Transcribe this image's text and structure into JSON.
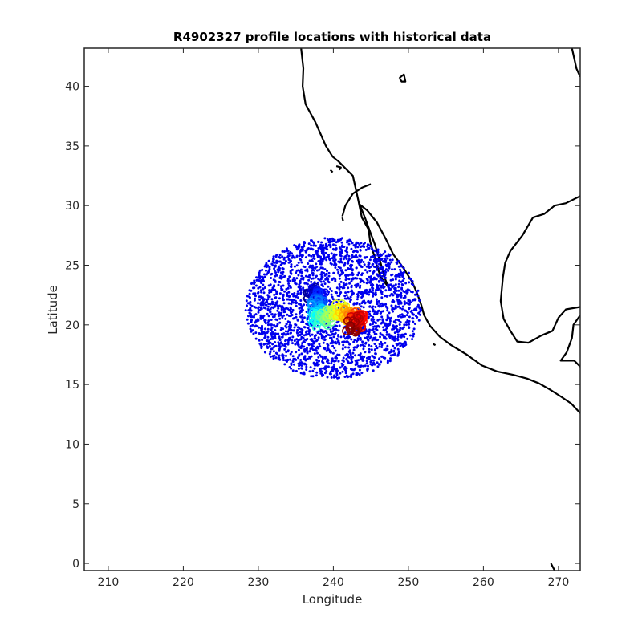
{
  "chart_data": {
    "type": "scatter",
    "title": "R4902327 profile locations with historical data",
    "xlabel": "Longitude",
    "ylabel": "Latitude",
    "xlim": [
      206.8,
      272.9
    ],
    "ylim": [
      -0.6,
      43.2
    ],
    "xticks": [
      210,
      220,
      230,
      240,
      250,
      260,
      270
    ],
    "yticks": [
      0,
      5,
      10,
      15,
      20,
      25,
      30,
      35,
      40
    ],
    "grid": false,
    "legend": "none",
    "historical_points": {
      "color": "#0000ee",
      "region": {
        "lon_center": 240.0,
        "lat_center": 21.4,
        "lon_radius": 11.7,
        "lat_radius": 5.9
      }
    },
    "float_profiles": {
      "colormap": "jet",
      "path": [
        {
          "lon": 237.0,
          "lat": 22.7
        },
        {
          "lon": 238.5,
          "lat": 22.3
        },
        {
          "lon": 237.5,
          "lat": 21.2
        },
        {
          "lon": 238.3,
          "lat": 20.3
        },
        {
          "lon": 240.5,
          "lat": 21.3
        },
        {
          "lon": 242.0,
          "lat": 20.8
        },
        {
          "lon": 243.5,
          "lat": 20.5
        },
        {
          "lon": 242.3,
          "lat": 19.9
        }
      ]
    },
    "coastline": {
      "color": "#000000",
      "segments": [
        [
          [
            235.7,
            43.2
          ],
          [
            236.0,
            41.5
          ],
          [
            235.9,
            40.0
          ],
          [
            236.3,
            38.5
          ],
          [
            237.6,
            37.0
          ],
          [
            239.0,
            35.0
          ],
          [
            239.9,
            34.1
          ],
          [
            240.7,
            33.7
          ],
          [
            242.6,
            32.5
          ],
          [
            243.3,
            30.5
          ],
          [
            243.8,
            29.0
          ],
          [
            244.7,
            28.0
          ],
          [
            244.9,
            27.0
          ],
          [
            245.8,
            25.0
          ],
          [
            246.3,
            24.0
          ],
          [
            247.3,
            23.2
          ],
          [
            246.8,
            24.0
          ],
          [
            246.3,
            25.2
          ],
          [
            245.5,
            26.8
          ],
          [
            244.9,
            27.8
          ],
          [
            244.2,
            29.0
          ],
          [
            243.5,
            30.1
          ],
          [
            244.5,
            29.6
          ],
          [
            245.8,
            28.6
          ],
          [
            247.0,
            27.2
          ],
          [
            248.0,
            25.9
          ],
          [
            249.3,
            24.8
          ],
          [
            250.5,
            23.6
          ],
          [
            251.2,
            22.6
          ],
          [
            251.7,
            21.7
          ],
          [
            252.1,
            20.8
          ],
          [
            252.9,
            19.9
          ],
          [
            254.2,
            19.0
          ],
          [
            255.7,
            18.3
          ],
          [
            257.8,
            17.5
          ],
          [
            259.8,
            16.6
          ],
          [
            261.8,
            16.1
          ],
          [
            264.0,
            15.8
          ],
          [
            265.8,
            15.5
          ],
          [
            267.4,
            15.1
          ],
          [
            268.8,
            14.6
          ],
          [
            270.3,
            14.0
          ],
          [
            271.7,
            13.4
          ],
          [
            272.9,
            12.6
          ]
        ],
        [
          [
            271.8,
            43.2
          ],
          [
            272.4,
            41.5
          ],
          [
            272.9,
            40.8
          ]
        ],
        [
          [
            272.9,
            30.8
          ],
          [
            271.0,
            30.2
          ],
          [
            269.5,
            30.0
          ],
          [
            268.1,
            29.3
          ],
          [
            266.6,
            29.0
          ],
          [
            265.2,
            27.5
          ],
          [
            263.6,
            26.2
          ],
          [
            262.9,
            25.2
          ],
          [
            262.6,
            24.0
          ],
          [
            262.3,
            22.0
          ],
          [
            262.7,
            20.5
          ],
          [
            263.6,
            19.5
          ],
          [
            264.5,
            18.6
          ],
          [
            266.0,
            18.5
          ],
          [
            267.7,
            19.1
          ],
          [
            269.2,
            19.5
          ],
          [
            270.0,
            20.6
          ],
          [
            271.0,
            21.3
          ],
          [
            272.9,
            21.5
          ]
        ],
        [
          [
            272.9,
            20.8
          ],
          [
            272.0,
            20.0
          ],
          [
            271.8,
            18.9
          ],
          [
            271.1,
            17.7
          ],
          [
            270.3,
            17.0
          ],
          [
            272.1,
            17.0
          ],
          [
            272.9,
            16.5
          ]
        ],
        [
          [
            241.2,
            29.1
          ],
          [
            241.6,
            30.0
          ],
          [
            242.6,
            31.0
          ],
          [
            243.8,
            31.5
          ],
          [
            245.0,
            31.8
          ]
        ],
        [
          [
            248.8,
            40.7
          ],
          [
            249.1,
            40.4
          ],
          [
            249.6,
            40.4
          ],
          [
            249.4,
            41.0
          ],
          [
            248.8,
            40.7
          ]
        ],
        [
          [
            240.4,
            33.3
          ],
          [
            241.0,
            33.2
          ],
          [
            240.8,
            33.0
          ]
        ],
        [
          [
            239.6,
            33.0
          ],
          [
            239.9,
            32.8
          ]
        ],
        [
          [
            241.2,
            29.0
          ],
          [
            241.3,
            28.7
          ]
        ],
        [
          [
            253.3,
            18.4
          ],
          [
            253.6,
            18.3
          ]
        ],
        [
          [
            269.0,
            0.0
          ],
          [
            269.5,
            -0.6
          ]
        ]
      ]
    }
  }
}
